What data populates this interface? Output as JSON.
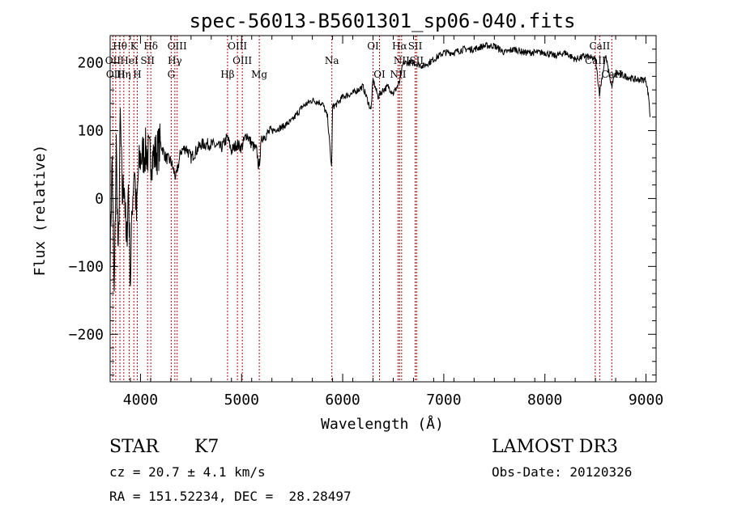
{
  "chart_data": {
    "type": "line",
    "title": "spec-56013-B5601301_sp06-040.fits",
    "xlabel": "Wavelength (Å)",
    "ylabel": "Flux (relative)",
    "xlim": [
      3700,
      9100
    ],
    "ylim": [
      -270,
      240
    ],
    "x_ticks": [
      4000,
      5000,
      6000,
      7000,
      8000,
      9000
    ],
    "x_minor_step": 200,
    "y_ticks": [
      -200,
      -100,
      0,
      100,
      200
    ],
    "y_minor_step": 20,
    "series": [
      {
        "color": "#000000",
        "x": [
          3700,
          3720,
          3740,
          3760,
          3780,
          3800,
          3820,
          3840,
          3860,
          3880,
          3900,
          3920,
          3940,
          3960,
          3980,
          4000,
          4050,
          4100,
          4150,
          4200,
          4250,
          4300,
          4350,
          4400,
          4450,
          4500,
          4600,
          4700,
          4800,
          4860,
          4900,
          4950,
          5000,
          5050,
          5100,
          5150,
          5170,
          5200,
          5300,
          5400,
          5500,
          5600,
          5700,
          5800,
          5850,
          5890,
          5900,
          5950,
          6000,
          6100,
          6200,
          6280,
          6300,
          6350,
          6400,
          6450,
          6500,
          6560,
          6600,
          6700,
          6800,
          6900,
          7000,
          7100,
          7200,
          7300,
          7400,
          7500,
          7600,
          7700,
          7800,
          7900,
          8000,
          8100,
          8200,
          8300,
          8400,
          8500,
          8540,
          8600,
          8660,
          8700,
          8800,
          8900,
          9000,
          9030,
          9040
        ],
        "y": [
          -80,
          60,
          -150,
          80,
          -100,
          120,
          0,
          30,
          -80,
          20,
          -120,
          0,
          50,
          -30,
          40,
          60,
          70,
          60,
          65,
          80,
          60,
          55,
          30,
          70,
          75,
          60,
          80,
          80,
          75,
          90,
          70,
          80,
          75,
          95,
          80,
          70,
          45,
          90,
          100,
          105,
          115,
          135,
          145,
          140,
          120,
          45,
          135,
          140,
          150,
          155,
          165,
          130,
          175,
          150,
          160,
          165,
          155,
          170,
          200,
          200,
          195,
          205,
          215,
          215,
          220,
          220,
          225,
          225,
          215,
          220,
          215,
          215,
          215,
          210,
          215,
          205,
          210,
          205,
          155,
          210,
          165,
          185,
          180,
          175,
          175,
          145,
          120
        ]
      }
    ],
    "lines": [
      {
        "label": "Hθ",
        "wave": 3797,
        "row": 1
      },
      {
        "label": "K",
        "wave": 3934,
        "row": 1
      },
      {
        "label": "Hδ",
        "wave": 4102,
        "row": 1
      },
      {
        "label": "OIII",
        "wave": 4363,
        "row": 1
      },
      {
        "label": "OIII",
        "wave": 4959,
        "row": 1
      },
      {
        "label": "OI",
        "wave": 6300,
        "row": 1
      },
      {
        "label": "Hα",
        "wave": 6563,
        "row": 1
      },
      {
        "label": "SII",
        "wave": 6717,
        "row": 1
      },
      {
        "label": "CaII",
        "wave": 8542,
        "row": 1
      },
      {
        "label": "OII",
        "wave": 3727,
        "row": 2
      },
      {
        "label": "HeI",
        "wave": 3889,
        "row": 2
      },
      {
        "label": "SII",
        "wave": 4070,
        "row": 2
      },
      {
        "label": "Hγ",
        "wave": 4340,
        "row": 2
      },
      {
        "label": "OIII",
        "wave": 5007,
        "row": 2
      },
      {
        "label": "Na",
        "wave": 5893,
        "row": 2
      },
      {
        "label": "NII",
        "wave": 6583,
        "row": 2
      },
      {
        "label": "SII",
        "wave": 6731,
        "row": 2
      },
      {
        "label": "CaII",
        "wave": 8498,
        "row": 2
      },
      {
        "label": "OIII",
        "wave": 3755,
        "row": 3
      },
      {
        "label": "Hη",
        "wave": 3835,
        "row": 3
      },
      {
        "label": "H",
        "wave": 3968,
        "row": 3
      },
      {
        "label": "G",
        "wave": 4304,
        "row": 3
      },
      {
        "label": "Hβ",
        "wave": 4861,
        "row": 3
      },
      {
        "label": "Mg",
        "wave": 5175,
        "row": 3
      },
      {
        "label": "OI",
        "wave": 6364,
        "row": 3
      },
      {
        "label": "NII",
        "wave": 6548,
        "row": 3
      },
      {
        "label": "CaII",
        "wave": 8662,
        "row": 3
      }
    ],
    "grid": false,
    "legend": "none"
  },
  "info": {
    "object_class": "STAR",
    "subclass": "K7",
    "survey": "LAMOST DR3",
    "redshift": "cz = 20.7 ± 4.1 km/s",
    "obs_date": "Obs-Date: 20120326",
    "coords": "RA = 151.52234, DEC =  28.28497"
  },
  "colors": {
    "spectrum": "#000000",
    "line_marker": "#cc0000",
    "axes": "#000000"
  }
}
